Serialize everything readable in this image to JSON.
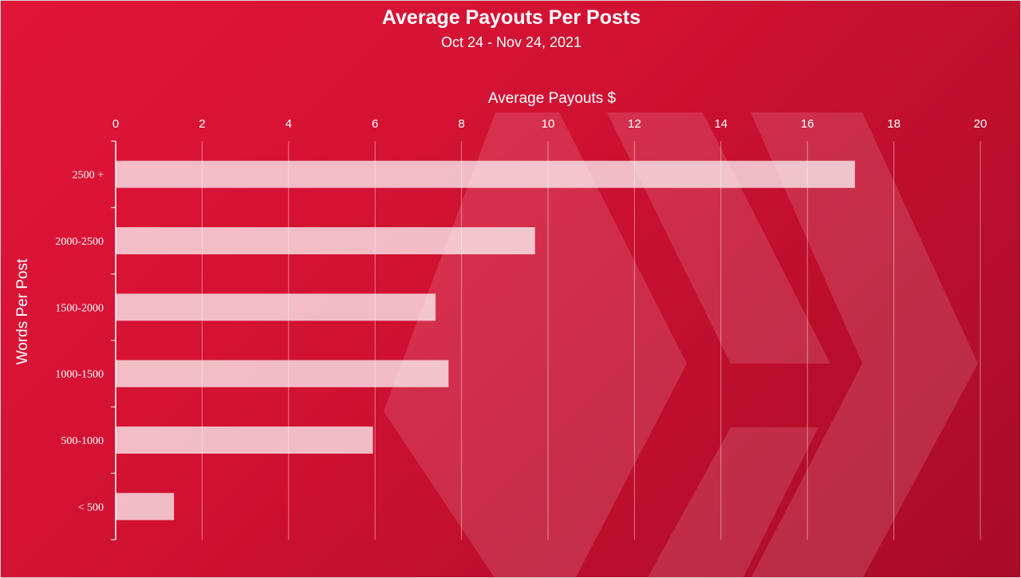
{
  "colors": {
    "background": "#d01233",
    "bar": "#ffffff",
    "gridline": "#ffffff",
    "text": "#ffffff"
  },
  "watermark": {
    "icon": "hive-logo-icon"
  },
  "chart_data": {
    "type": "bar",
    "orientation": "horizontal",
    "title": "Average Payouts Per Posts",
    "subtitle": "Oct 24 - Nov 24, 2021",
    "xlabel": "Average Payouts $",
    "ylabel": "Words Per Post",
    "categories": [
      "2500 +",
      "2000-2500",
      "1500-2000",
      "1000-1500",
      "500-1000",
      "< 500"
    ],
    "values": [
      17.1,
      9.7,
      7.4,
      7.7,
      5.95,
      1.35
    ],
    "xlim": [
      0,
      20
    ],
    "xticks": [
      "0",
      "2",
      "4",
      "6",
      "8",
      "10",
      "12",
      "14",
      "16",
      "18",
      "20"
    ],
    "x_axis_position": "top",
    "grid": true,
    "legend": "none"
  }
}
